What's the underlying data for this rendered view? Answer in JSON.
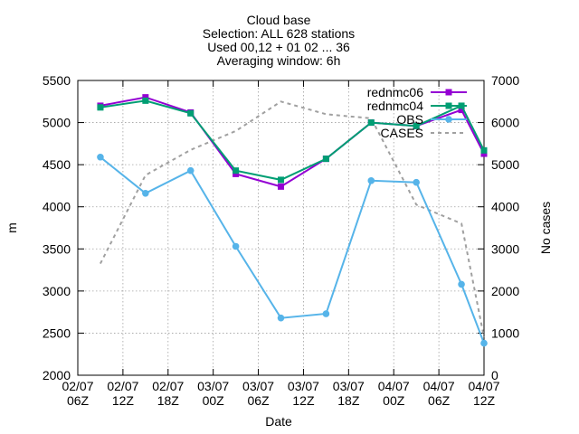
{
  "chart_data": {
    "type": "line",
    "title_lines": [
      "Cloud base",
      "Selection: ALL    628 stations",
      "Used 00,12 + 01 02 ... 36",
      "Averaging window:  6h"
    ],
    "xlabel": "Date",
    "ylabel": "m",
    "y2label": "No cases",
    "xlim": [
      0,
      54
    ],
    "ylim": [
      2000,
      5500
    ],
    "y2lim": [
      0,
      7000
    ],
    "yticks": [
      2000,
      2500,
      3000,
      3500,
      4000,
      4500,
      5000,
      5500
    ],
    "y2ticks": [
      0,
      1000,
      2000,
      3000,
      4000,
      5000,
      6000,
      7000
    ],
    "xticks": [
      {
        "x": 0,
        "line1": "02/07",
        "line2": "06Z"
      },
      {
        "x": 6,
        "line1": "02/07",
        "line2": "12Z"
      },
      {
        "x": 12,
        "line1": "02/07",
        "line2": "18Z"
      },
      {
        "x": 18,
        "line1": "03/07",
        "line2": "00Z"
      },
      {
        "x": 24,
        "line1": "03/07",
        "line2": "06Z"
      },
      {
        "x": 30,
        "line1": "03/07",
        "line2": "12Z"
      },
      {
        "x": 36,
        "line1": "03/07",
        "line2": "18Z"
      },
      {
        "x": 42,
        "line1": "04/07",
        "line2": "00Z"
      },
      {
        "x": 48,
        "line1": "04/07",
        "line2": "06Z"
      },
      {
        "x": 54,
        "line1": "04/07",
        "line2": "12Z"
      }
    ],
    "grid": true,
    "legend_position": "top-right",
    "x": [
      3,
      9,
      15,
      21,
      27,
      33,
      39,
      45,
      51,
      54
    ],
    "series": [
      {
        "name": "rednmc06",
        "axis": "y",
        "color": "#9400d3",
        "marker": "square",
        "dash": false,
        "values": [
          5200,
          5300,
          5120,
          4390,
          4240,
          4570,
          5000,
          4960,
          5150,
          4630
        ]
      },
      {
        "name": "rednmc04",
        "axis": "y",
        "color": "#009e73",
        "marker": "square",
        "dash": false,
        "values": [
          5180,
          5260,
          5110,
          4430,
          4320,
          4570,
          5000,
          4960,
          5200,
          4670
        ]
      },
      {
        "name": "OBS",
        "axis": "y",
        "color": "#56b4e9",
        "marker": "circle",
        "dash": false,
        "values": [
          4590,
          4160,
          4430,
          3530,
          2680,
          2730,
          4310,
          4290,
          3080,
          2380
        ]
      },
      {
        "name": "CASES",
        "axis": "y2",
        "color": "#a0a0a0",
        "marker": "none",
        "dash": true,
        "x": [
          3,
          9,
          15,
          21,
          27,
          33,
          39,
          45,
          51,
          54
        ],
        "values": [
          2650,
          4750,
          5350,
          5800,
          6500,
          6200,
          6100,
          4050,
          3600,
          900
        ]
      }
    ]
  }
}
